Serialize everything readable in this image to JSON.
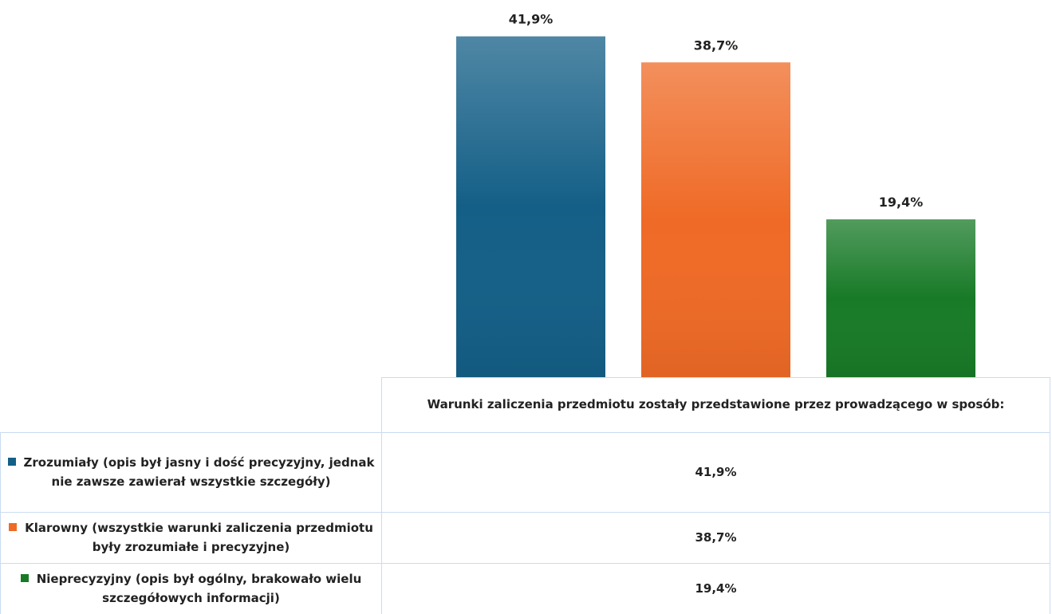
{
  "chart_data": {
    "type": "bar",
    "categories": [
      "Warunki zaliczenia przedmiotu zostały przedstawione przez prowadzącego w sposób:"
    ],
    "series": [
      {
        "name": "Zrozumiały (opis był jasny i dość precyzyjny, jednak nie zawsze zawierał wszystkie szczegóły)",
        "color": "#145f87",
        "values": [
          41.9
        ],
        "value_labels": [
          "41,9%"
        ]
      },
      {
        "name": "Klarowny (wszystkie warunki zaliczenia przedmiotu były zrozumiałe i precyzyjne)",
        "color": "#ef6a26",
        "values": [
          38.7
        ],
        "value_labels": [
          "38,7%"
        ]
      },
      {
        "name": "Nieprecyzyjny (opis był ogólny, brakowało wielu szczegółowych informacji)",
        "color": "#187a27",
        "values": [
          19.4
        ],
        "value_labels": [
          "19,4%"
        ]
      }
    ],
    "ylim": [
      0,
      45
    ]
  }
}
